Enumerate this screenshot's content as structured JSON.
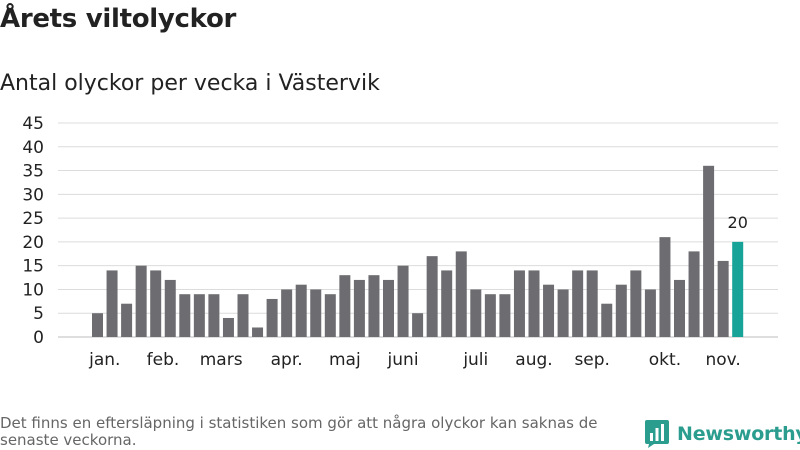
{
  "title": "Årets viltolyckor",
  "subtitle": "Antal olyckor per vecka i Västervik",
  "footnote": "Det finns en eftersläpning i statistiken som gör att några olyckor kan saknas de senaste veckorna.",
  "brand": "Newsworthy",
  "colors": {
    "bar": "#6d6c70",
    "highlight": "#17a398",
    "grid": "#dcdcdc",
    "brand": "#2a9d8f"
  },
  "chart_data": {
    "type": "bar",
    "ylim": [
      0,
      45
    ],
    "yticks": [
      0,
      5,
      10,
      15,
      20,
      25,
      30,
      35,
      40,
      45
    ],
    "x": [
      2,
      3,
      4,
      5,
      6,
      7,
      8,
      9,
      10,
      11,
      12,
      13,
      14,
      15,
      16,
      17,
      18,
      19,
      20,
      21,
      22,
      23,
      24,
      25,
      26,
      27,
      28,
      29,
      30,
      31,
      32,
      33,
      34,
      35,
      36,
      37,
      38,
      39,
      40,
      41,
      42,
      43,
      44,
      45,
      46
    ],
    "values": [
      5,
      14,
      7,
      15,
      14,
      12,
      9,
      9,
      9,
      4,
      9,
      2,
      8,
      10,
      11,
      10,
      9,
      13,
      12,
      13,
      12,
      15,
      5,
      17,
      14,
      18,
      10,
      9,
      9,
      14,
      14,
      11,
      10,
      14,
      14,
      7,
      11,
      14,
      10,
      21,
      12,
      18,
      36,
      16,
      20
    ],
    "highlight": {
      "x": 46,
      "value": 20,
      "label": "20"
    },
    "month_labels": [
      {
        "label": "jan.",
        "x": 2.5
      },
      {
        "label": "feb.",
        "x": 6.5
      },
      {
        "label": "mars",
        "x": 10.5
      },
      {
        "label": "apr.",
        "x": 15
      },
      {
        "label": "maj",
        "x": 19
      },
      {
        "label": "juni",
        "x": 23
      },
      {
        "label": "juli",
        "x": 28
      },
      {
        "label": "aug.",
        "x": 32
      },
      {
        "label": "sep.",
        "x": 36
      },
      {
        "label": "okt.",
        "x": 41
      },
      {
        "label": "nov.",
        "x": 45
      }
    ]
  }
}
